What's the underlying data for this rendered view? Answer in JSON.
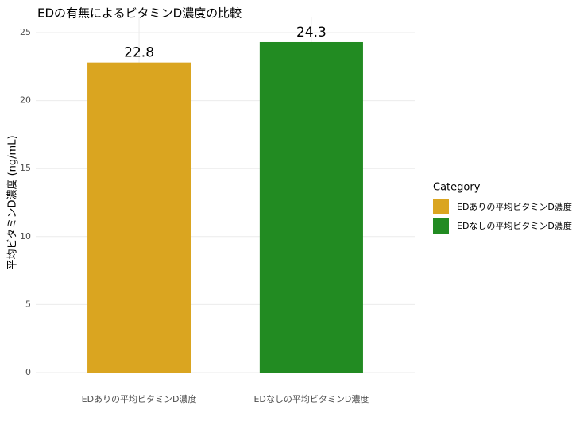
{
  "chart_data": {
    "type": "bar",
    "title": "EDの有無によるビタミンD濃度の比較",
    "ylabel": "平均ビタミンD濃度 (ng/mL)",
    "categories": [
      "EDありの平均ビタミンD濃度",
      "EDなしの平均ビタミンD濃度"
    ],
    "values": [
      22.8,
      24.3
    ],
    "colors": [
      "#DAA520",
      "#228B22"
    ],
    "ylim": [
      0,
      25
    ],
    "yticks": [
      0,
      5,
      10,
      15,
      20,
      25
    ],
    "grid": true,
    "legend": {
      "title": "Category",
      "position": "right"
    }
  }
}
